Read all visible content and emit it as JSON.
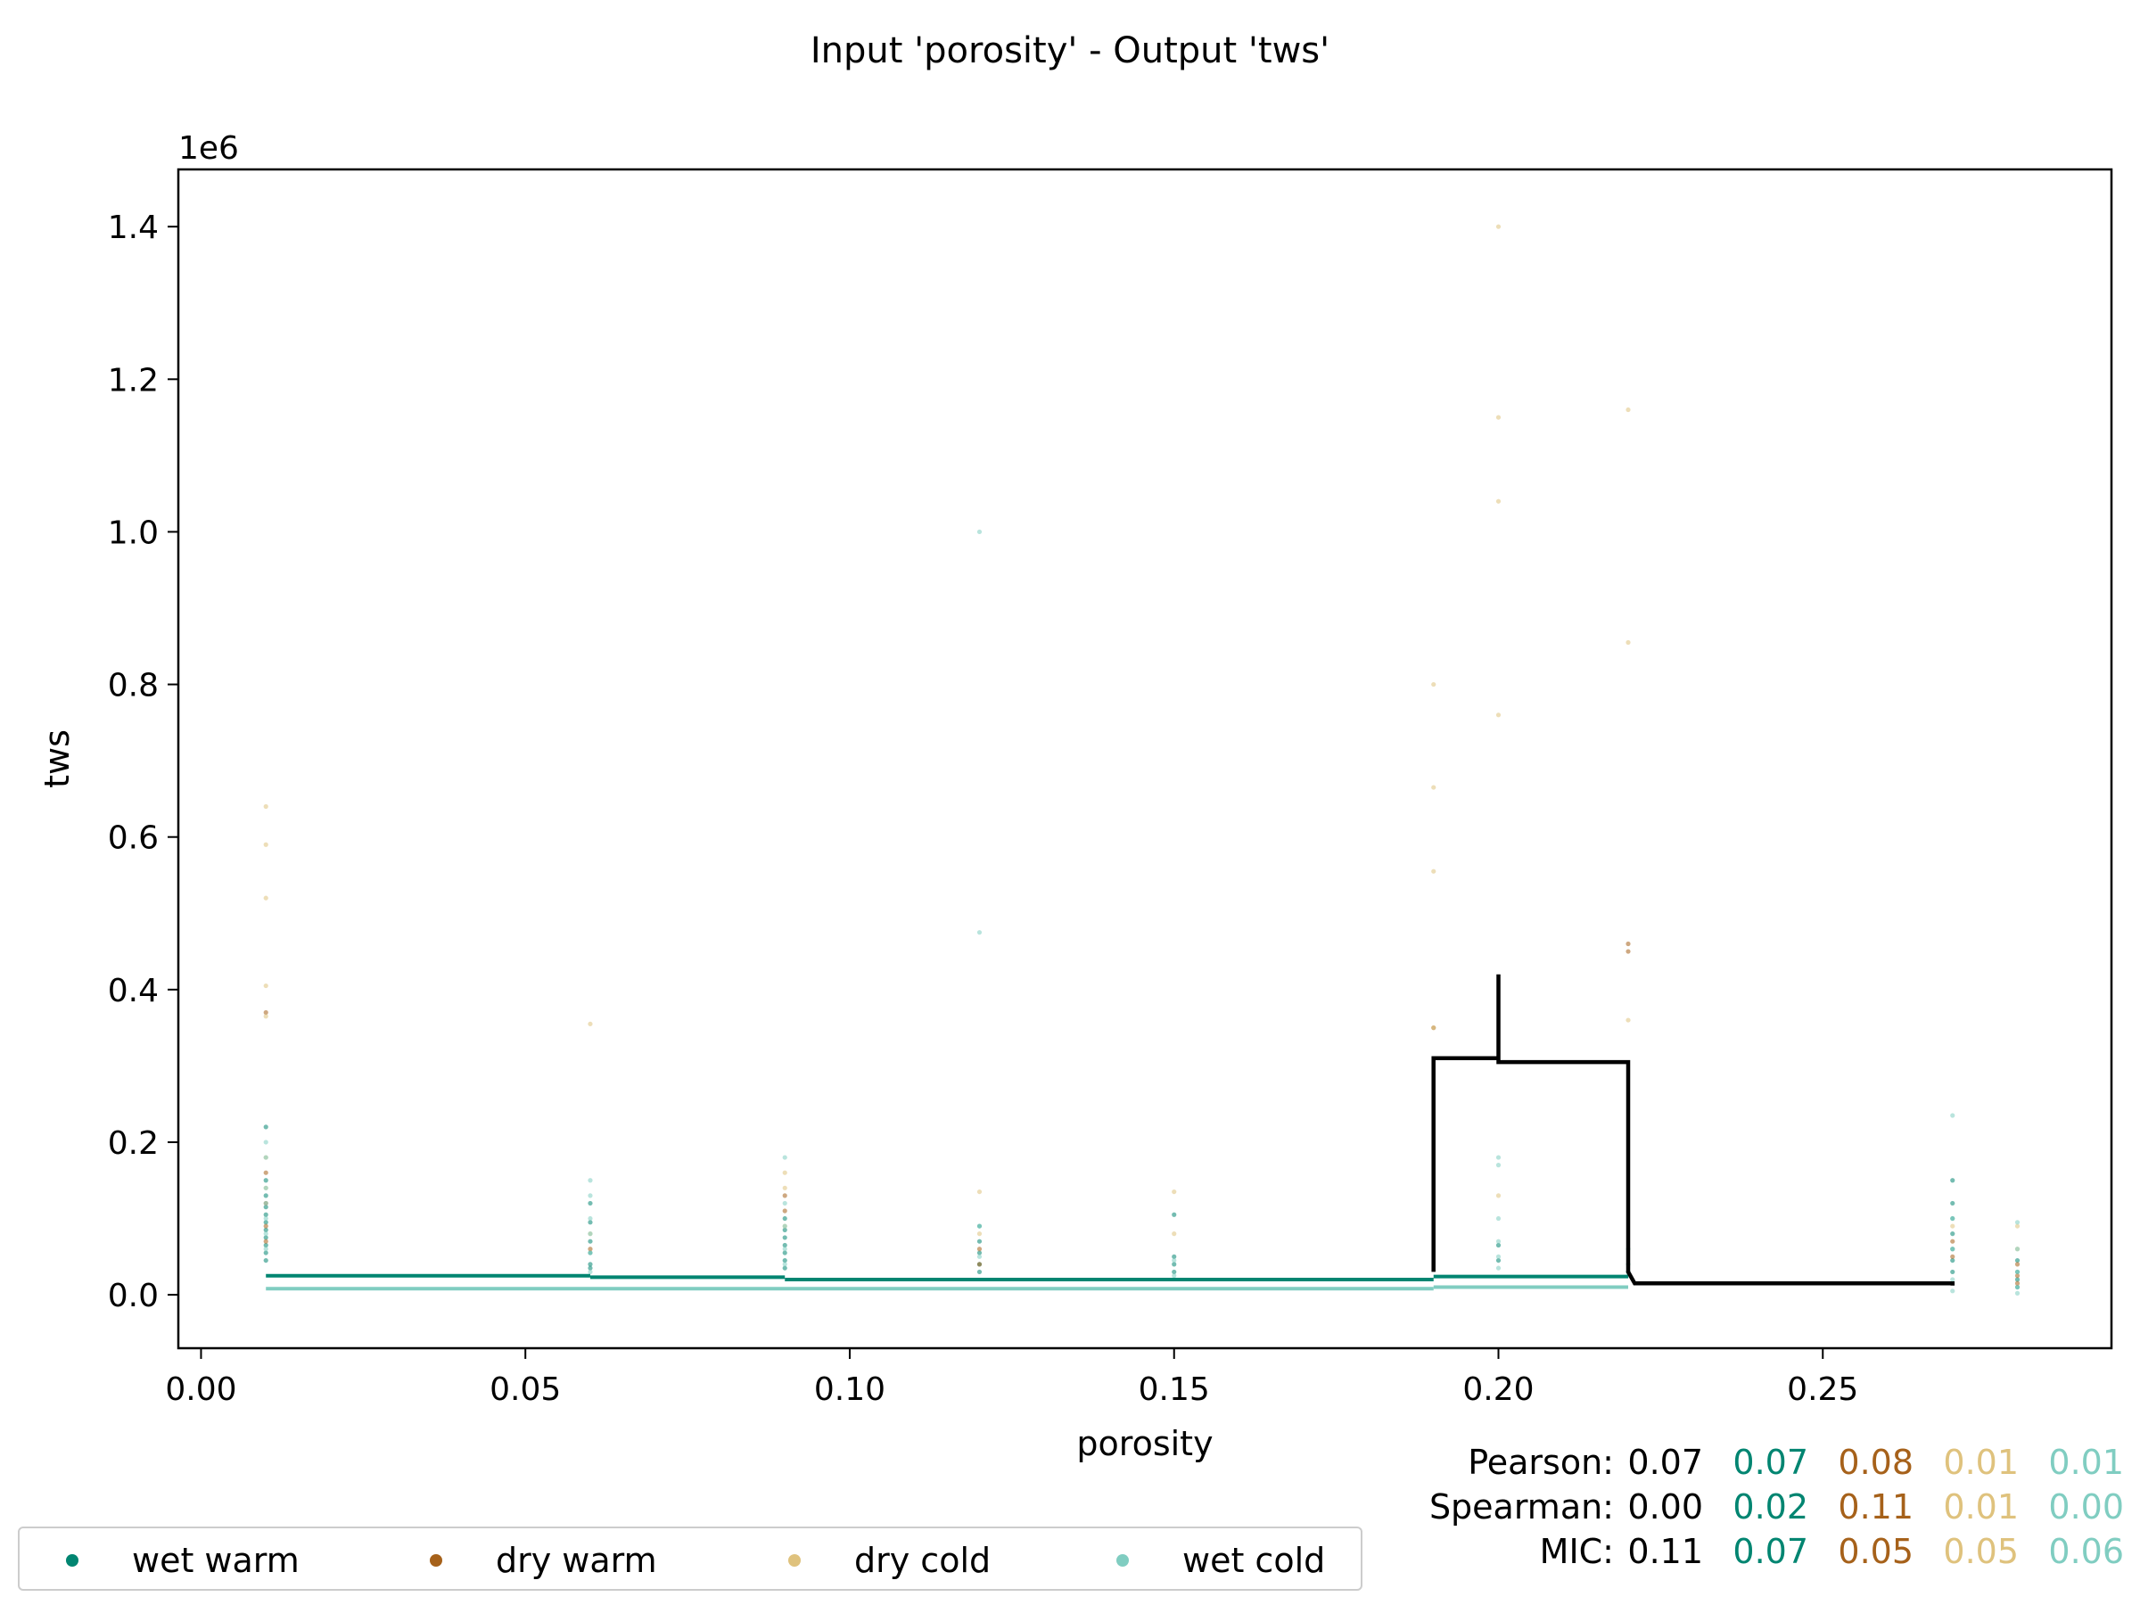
{
  "chart_data": {
    "type": "scatter",
    "title": "Input 'porosity' - Output 'tws'",
    "xlabel": "porosity",
    "ylabel": "tws",
    "y_offset_label": "1e6",
    "xlim": [
      -0.0035,
      0.2945
    ],
    "ylim": [
      -70000,
      1475000
    ],
    "x_ticks": [
      "0.00",
      "0.05",
      "0.10",
      "0.15",
      "0.20",
      "0.25"
    ],
    "x_tick_values": [
      0.0,
      0.05,
      0.1,
      0.15,
      0.2,
      0.25
    ],
    "y_ticks": [
      "0.0",
      "0.2",
      "0.4",
      "0.6",
      "0.8",
      "1.0",
      "1.2",
      "1.4"
    ],
    "y_tick_values": [
      0,
      200000,
      400000,
      600000,
      800000,
      1000000,
      1200000,
      1400000
    ],
    "series": [
      {
        "name": "wet warm",
        "color": "#018571",
        "points": [
          [
            0.01,
            220000
          ],
          [
            0.01,
            150000
          ],
          [
            0.01,
            130000
          ],
          [
            0.01,
            115000
          ],
          [
            0.01,
            105000
          ],
          [
            0.01,
            95000
          ],
          [
            0.01,
            85000
          ],
          [
            0.01,
            75000
          ],
          [
            0.01,
            65000
          ],
          [
            0.01,
            55000
          ],
          [
            0.01,
            45000
          ],
          [
            0.06,
            120000
          ],
          [
            0.06,
            95000
          ],
          [
            0.06,
            70000
          ],
          [
            0.06,
            55000
          ],
          [
            0.06,
            40000
          ],
          [
            0.06,
            35000
          ],
          [
            0.09,
            100000
          ],
          [
            0.09,
            85000
          ],
          [
            0.09,
            75000
          ],
          [
            0.09,
            65000
          ],
          [
            0.09,
            55000
          ],
          [
            0.09,
            45000
          ],
          [
            0.09,
            35000
          ],
          [
            0.12,
            90000
          ],
          [
            0.12,
            70000
          ],
          [
            0.12,
            55000
          ],
          [
            0.12,
            40000
          ],
          [
            0.12,
            30000
          ],
          [
            0.15,
            105000
          ],
          [
            0.15,
            50000
          ],
          [
            0.15,
            40000
          ],
          [
            0.15,
            30000
          ],
          [
            0.2,
            65000
          ],
          [
            0.2,
            45000
          ],
          [
            0.22,
            30000
          ],
          [
            0.27,
            150000
          ],
          [
            0.27,
            120000
          ],
          [
            0.27,
            100000
          ],
          [
            0.27,
            80000
          ],
          [
            0.27,
            60000
          ],
          [
            0.27,
            45000
          ],
          [
            0.27,
            30000
          ],
          [
            0.28,
            45000
          ],
          [
            0.28,
            30000
          ],
          [
            0.28,
            20000
          ],
          [
            0.28,
            10000
          ]
        ]
      },
      {
        "name": "dry warm",
        "color": "#a6611a",
        "points": [
          [
            0.01,
            370000
          ],
          [
            0.01,
            160000
          ],
          [
            0.01,
            120000
          ],
          [
            0.01,
            90000
          ],
          [
            0.01,
            70000
          ],
          [
            0.06,
            60000
          ],
          [
            0.09,
            130000
          ],
          [
            0.09,
            110000
          ],
          [
            0.12,
            60000
          ],
          [
            0.12,
            40000
          ],
          [
            0.19,
            350000
          ],
          [
            0.22,
            460000
          ],
          [
            0.22,
            450000
          ],
          [
            0.27,
            70000
          ],
          [
            0.27,
            50000
          ],
          [
            0.28,
            40000
          ],
          [
            0.28,
            25000
          ],
          [
            0.28,
            15000
          ]
        ]
      },
      {
        "name": "dry cold",
        "color": "#dfc27d",
        "points": [
          [
            0.01,
            640000
          ],
          [
            0.01,
            590000
          ],
          [
            0.01,
            520000
          ],
          [
            0.01,
            405000
          ],
          [
            0.01,
            365000
          ],
          [
            0.01,
            180000
          ],
          [
            0.01,
            140000
          ],
          [
            0.06,
            355000
          ],
          [
            0.06,
            80000
          ],
          [
            0.09,
            160000
          ],
          [
            0.09,
            140000
          ],
          [
            0.09,
            90000
          ],
          [
            0.12,
            135000
          ],
          [
            0.12,
            80000
          ],
          [
            0.15,
            135000
          ],
          [
            0.15,
            80000
          ],
          [
            0.19,
            800000
          ],
          [
            0.19,
            665000
          ],
          [
            0.19,
            555000
          ],
          [
            0.19,
            350000
          ],
          [
            0.2,
            1400000
          ],
          [
            0.2,
            1150000
          ],
          [
            0.2,
            1040000
          ],
          [
            0.2,
            760000
          ],
          [
            0.2,
            130000
          ],
          [
            0.22,
            1160000
          ],
          [
            0.22,
            855000
          ],
          [
            0.22,
            360000
          ],
          [
            0.27,
            90000
          ],
          [
            0.28,
            90000
          ],
          [
            0.28,
            60000
          ]
        ]
      },
      {
        "name": "wet cold",
        "color": "#80cdc1",
        "points": [
          [
            0.01,
            200000
          ],
          [
            0.01,
            180000
          ],
          [
            0.01,
            140000
          ],
          [
            0.01,
            120000
          ],
          [
            0.01,
            100000
          ],
          [
            0.01,
            80000
          ],
          [
            0.01,
            60000
          ],
          [
            0.06,
            150000
          ],
          [
            0.06,
            130000
          ],
          [
            0.06,
            100000
          ],
          [
            0.06,
            80000
          ],
          [
            0.06,
            55000
          ],
          [
            0.06,
            30000
          ],
          [
            0.09,
            180000
          ],
          [
            0.09,
            120000
          ],
          [
            0.09,
            90000
          ],
          [
            0.09,
            60000
          ],
          [
            0.09,
            40000
          ],
          [
            0.12,
            1000000
          ],
          [
            0.12,
            475000
          ],
          [
            0.12,
            90000
          ],
          [
            0.12,
            50000
          ],
          [
            0.15,
            45000
          ],
          [
            0.15,
            25000
          ],
          [
            0.2,
            180000
          ],
          [
            0.2,
            170000
          ],
          [
            0.2,
            100000
          ],
          [
            0.2,
            70000
          ],
          [
            0.2,
            50000
          ],
          [
            0.2,
            35000
          ],
          [
            0.22,
            60000
          ],
          [
            0.22,
            40000
          ],
          [
            0.22,
            25000
          ],
          [
            0.27,
            235000
          ],
          [
            0.27,
            100000
          ],
          [
            0.27,
            60000
          ],
          [
            0.27,
            20000
          ],
          [
            0.27,
            5000
          ],
          [
            0.28,
            95000
          ],
          [
            0.28,
            60000
          ],
          [
            0.28,
            30000
          ],
          [
            0.28,
            10000
          ],
          [
            0.28,
            2000
          ]
        ]
      }
    ],
    "mean_lines": [
      {
        "name": "wet warm",
        "color": "#018571",
        "steps": [
          [
            0.01,
            0.06,
            25000
          ],
          [
            0.06,
            0.09,
            23000
          ],
          [
            0.09,
            0.19,
            20000
          ],
          [
            0.19,
            0.22,
            24000
          ]
        ]
      },
      {
        "name": "wet cold",
        "color": "#80cdc1",
        "steps": [
          [
            0.01,
            0.19,
            8000
          ],
          [
            0.19,
            0.22,
            10000
          ]
        ]
      },
      {
        "name": "overall",
        "color": "#000000",
        "path": [
          [
            0.19,
            30000
          ],
          [
            0.19,
            310000
          ],
          [
            0.2,
            310000
          ],
          [
            0.2,
            420000
          ],
          [
            0.2,
            305000
          ],
          [
            0.22,
            305000
          ],
          [
            0.22,
            30000
          ],
          [
            0.221,
            15000
          ],
          [
            0.27,
            15000
          ],
          [
            0.27,
            12000
          ]
        ]
      }
    ],
    "legend": {
      "placement": "bottom-left",
      "entries": [
        {
          "label": "wet warm",
          "color": "#018571"
        },
        {
          "label": "dry warm",
          "color": "#a6611a"
        },
        {
          "label": "dry cold",
          "color": "#dfc27d"
        },
        {
          "label": "wet cold",
          "color": "#80cdc1"
        }
      ]
    },
    "stats": [
      {
        "label": "Pearson:",
        "values": [
          "0.07",
          "0.07",
          "0.08",
          "0.01",
          "0.01"
        ]
      },
      {
        "label": "Spearman:",
        "values": [
          "0.00",
          "0.02",
          "0.11",
          "0.01",
          "0.00"
        ]
      },
      {
        "label": "MIC:",
        "values": [
          "0.11",
          "0.07",
          "0.05",
          "0.05",
          "0.06"
        ]
      }
    ],
    "stats_colors": [
      "#000000",
      "#018571",
      "#a6611a",
      "#dfc27d",
      "#80cdc1"
    ],
    "grid": false
  }
}
